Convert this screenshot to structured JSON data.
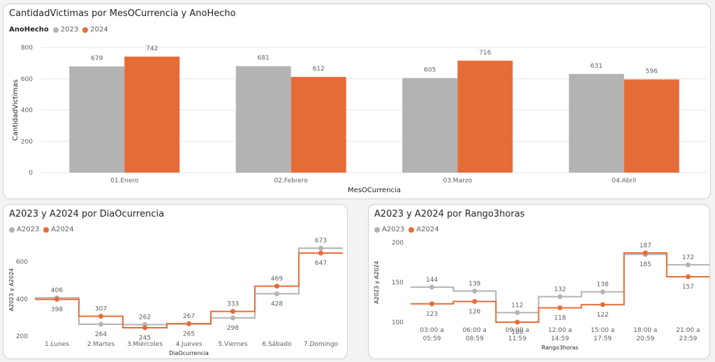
{
  "colors": {
    "a2023": "#b3b3b3",
    "a2024": "#e66c37",
    "grid": "#e6e6e6",
    "text": "#605e5c"
  },
  "chart_data": [
    {
      "type": "bar",
      "title": "CantidadVictimas por MesOCurrencia y AnoHecho",
      "legend_title": "AnoHecho",
      "xlabel": "MesOCurrencia",
      "ylabel": "CantidadVictimas",
      "categories": [
        "01.Enero",
        "02.Febrero",
        "03.Marzo",
        "04.Abril"
      ],
      "series": [
        {
          "name": "2023",
          "values": [
            679,
            681,
            605,
            631
          ]
        },
        {
          "name": "2024",
          "values": [
            742,
            612,
            716,
            596
          ]
        }
      ],
      "ylim": [
        0,
        800
      ],
      "yticks": [
        "0",
        "200",
        "400",
        "600",
        "800"
      ],
      "grid": true,
      "legend_position": "top-left"
    },
    {
      "type": "line",
      "title": "A2023 y A2024 por DiaOcurrencia",
      "xlabel": "DiaOcurrencia",
      "ylabel": "A2023 y A2024",
      "categories": [
        "1.Lunes",
        "2.Martes",
        "3.Miércoles",
        "4.Jueves",
        "5.Viernes",
        "6.Sábado",
        "7.Domingo"
      ],
      "series": [
        {
          "name": "A2023",
          "values": [
            406,
            264,
            262,
            265,
            298,
            428,
            673
          ]
        },
        {
          "name": "A2024",
          "values": [
            398,
            307,
            245,
            267,
            333,
            469,
            647
          ]
        }
      ],
      "ylim": [
        200,
        700
      ],
      "yticks": [
        "200",
        "400",
        "600"
      ],
      "step": true,
      "legend_position": "top-left"
    },
    {
      "type": "line",
      "title": "A2023 y A2024 por Rango3horas",
      "xlabel": "Rango3horas",
      "ylabel": "A2023 y A2024",
      "categories": [
        "03:00 a\n05:59",
        "06:00 a\n08:59",
        "09:00 a\n11:59",
        "12:00 a\n14:59",
        "15:00 a\n17:59",
        "18:00 a\n20:59",
        "21:00 a\n23:59"
      ],
      "series": [
        {
          "name": "A2023",
          "values": [
            144,
            139,
            112,
            132,
            138,
            185,
            172
          ]
        },
        {
          "name": "A2024",
          "values": [
            123,
            126,
            100,
            118,
            122,
            187,
            157
          ]
        }
      ],
      "ylim": [
        100,
        200
      ],
      "yticks": [
        "100",
        "150",
        "200"
      ],
      "step": true,
      "legend_position": "top-left"
    }
  ]
}
